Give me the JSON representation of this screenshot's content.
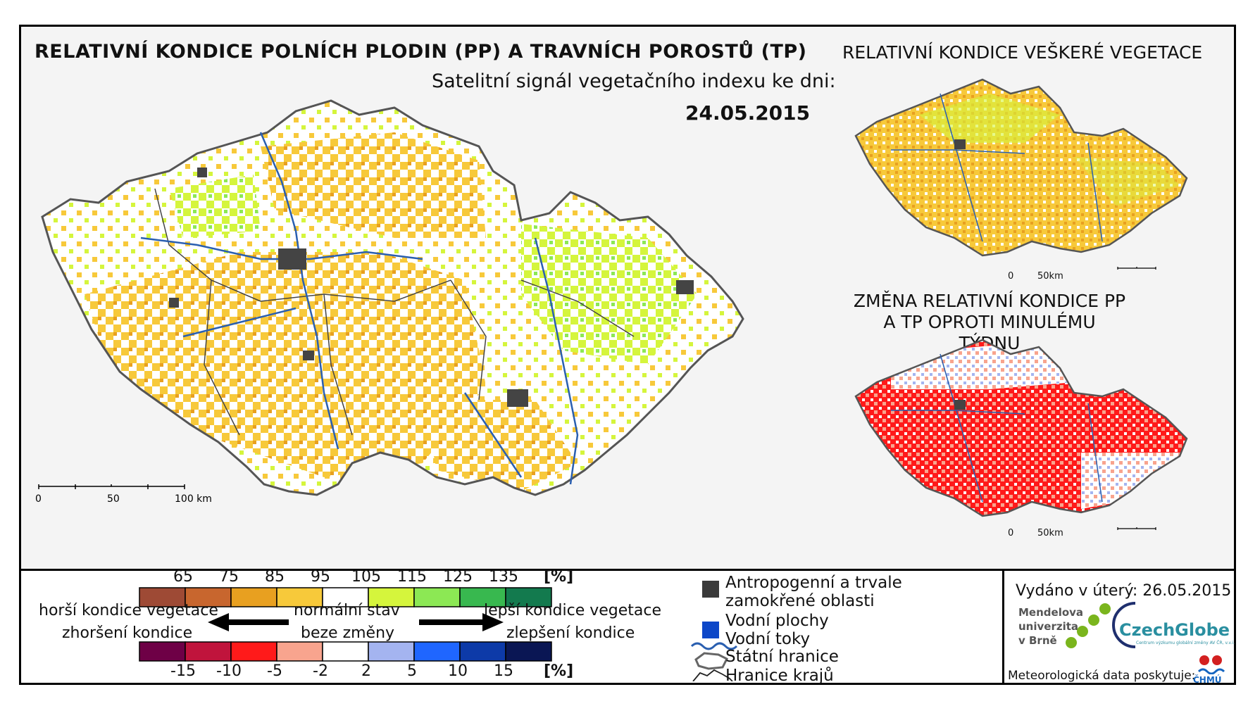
{
  "header": {
    "main_title": "RELATIVNÍ KONDICE POLNÍCH PLODIN (PP) A TRAVNÍCH POROSTŮ (TP)",
    "subtitle": "Satelitní signál vegetačního indexu ke dni:",
    "date": "24.05.2015",
    "right_title_1": "RELATIVNÍ KONDICE VEŠKERÉ VEGETACE",
    "right_title_2": "ZMĚNA RELATIVNÍ KONDICE PP A TP OPROTI MINULÉMU TÝDNU"
  },
  "scalebars": {
    "main": [
      "0",
      "50",
      "100 km"
    ],
    "small_1": [
      "0",
      "50km"
    ],
    "small_2": [
      "0",
      "50km"
    ]
  },
  "legend": {
    "condition_ticks": [
      "65",
      "75",
      "85",
      "95",
      "105",
      "115",
      "125",
      "135"
    ],
    "condition_unit": "[%]",
    "condition_colors": [
      "#9e4a35",
      "#c8662e",
      "#e8a020",
      "#f7c93a",
      "#ffffff",
      "#d5f53c",
      "#8ce854",
      "#38b84f",
      "#137a4e"
    ],
    "change_ticks": [
      "-15",
      "-10",
      "-5",
      "-2",
      "2",
      "5",
      "10",
      "15"
    ],
    "change_unit": "[%]",
    "change_colors": [
      "#6e0046",
      "#c0143c",
      "#ff1a1a",
      "#f8a48e",
      "#ffffff",
      "#a4b4f0",
      "#1f66ff",
      "#0d3aa8",
      "#0a1654"
    ],
    "worse_1": "horší kondice vegetace",
    "worse_2": "zhoršení kondice",
    "normal_1": "normální stav",
    "normal_2": "beze změny",
    "better_1": "lepší kondice vegetace",
    "better_2": "zlepšení kondice"
  },
  "map_legend": {
    "anthropogenic_1": "Antropogenní a trvale",
    "anthropogenic_2": "zamokřené oblasti",
    "water": "Vodní plochy",
    "rivers": "Vodní toky",
    "border": "Státní hranice",
    "regions": "Hranice krajů"
  },
  "footer": {
    "issued": "Vydáno v úterý: 26.05.2015",
    "mendel": [
      "Mendelova",
      "univerzita",
      "v Brně"
    ],
    "czechglobe": "CzechGlobe",
    "czechglobe_sub": "Centrum výzkumu globální změny AV ČR, v.v.i.",
    "meteo": "Meteorologická data poskytuje:",
    "chmu": "ČHMÚ"
  }
}
